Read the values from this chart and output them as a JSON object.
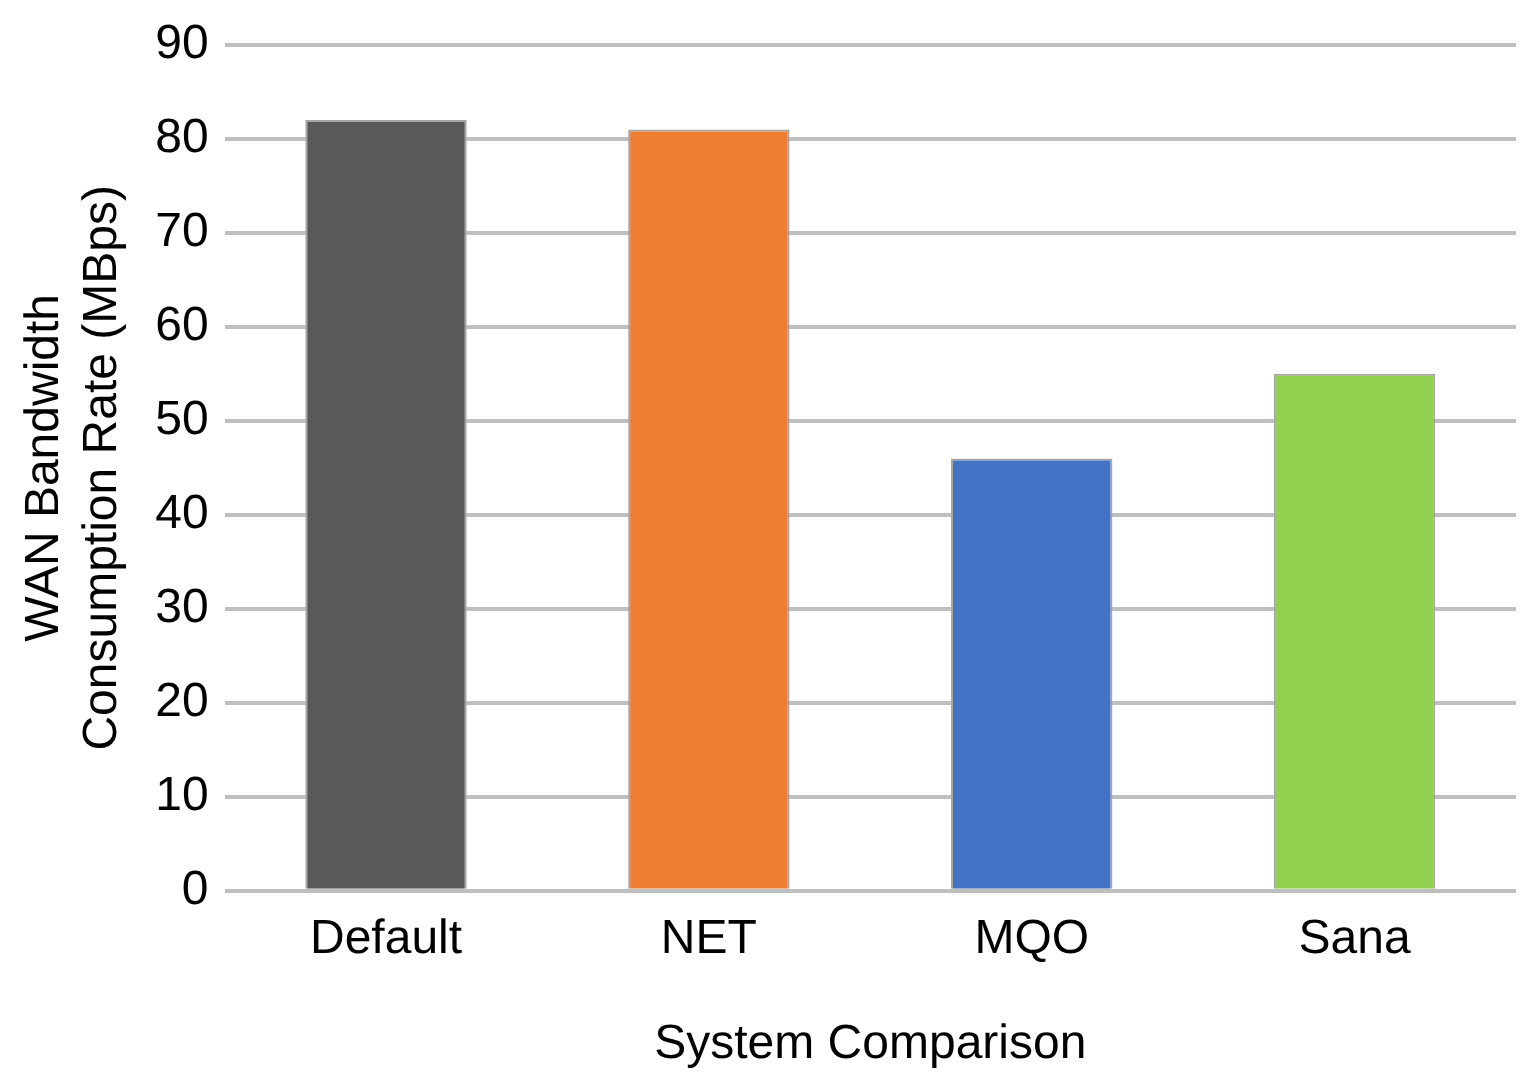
{
  "chart_data": {
    "type": "bar",
    "xlabel": "System Comparison",
    "ylabel": "WAN Bandwidth\nConsumption Rate (MBps)",
    "categories": [
      "Default",
      "NET",
      "MQO",
      "Sana"
    ],
    "values": [
      82,
      81,
      46,
      55
    ],
    "colors": [
      "#595959",
      "#ed7d31",
      "#4472c4",
      "#92d050"
    ],
    "ylim": [
      0,
      90
    ],
    "yticks": [
      0,
      10,
      20,
      30,
      40,
      50,
      60,
      70,
      80,
      90
    ],
    "grid": "y"
  }
}
